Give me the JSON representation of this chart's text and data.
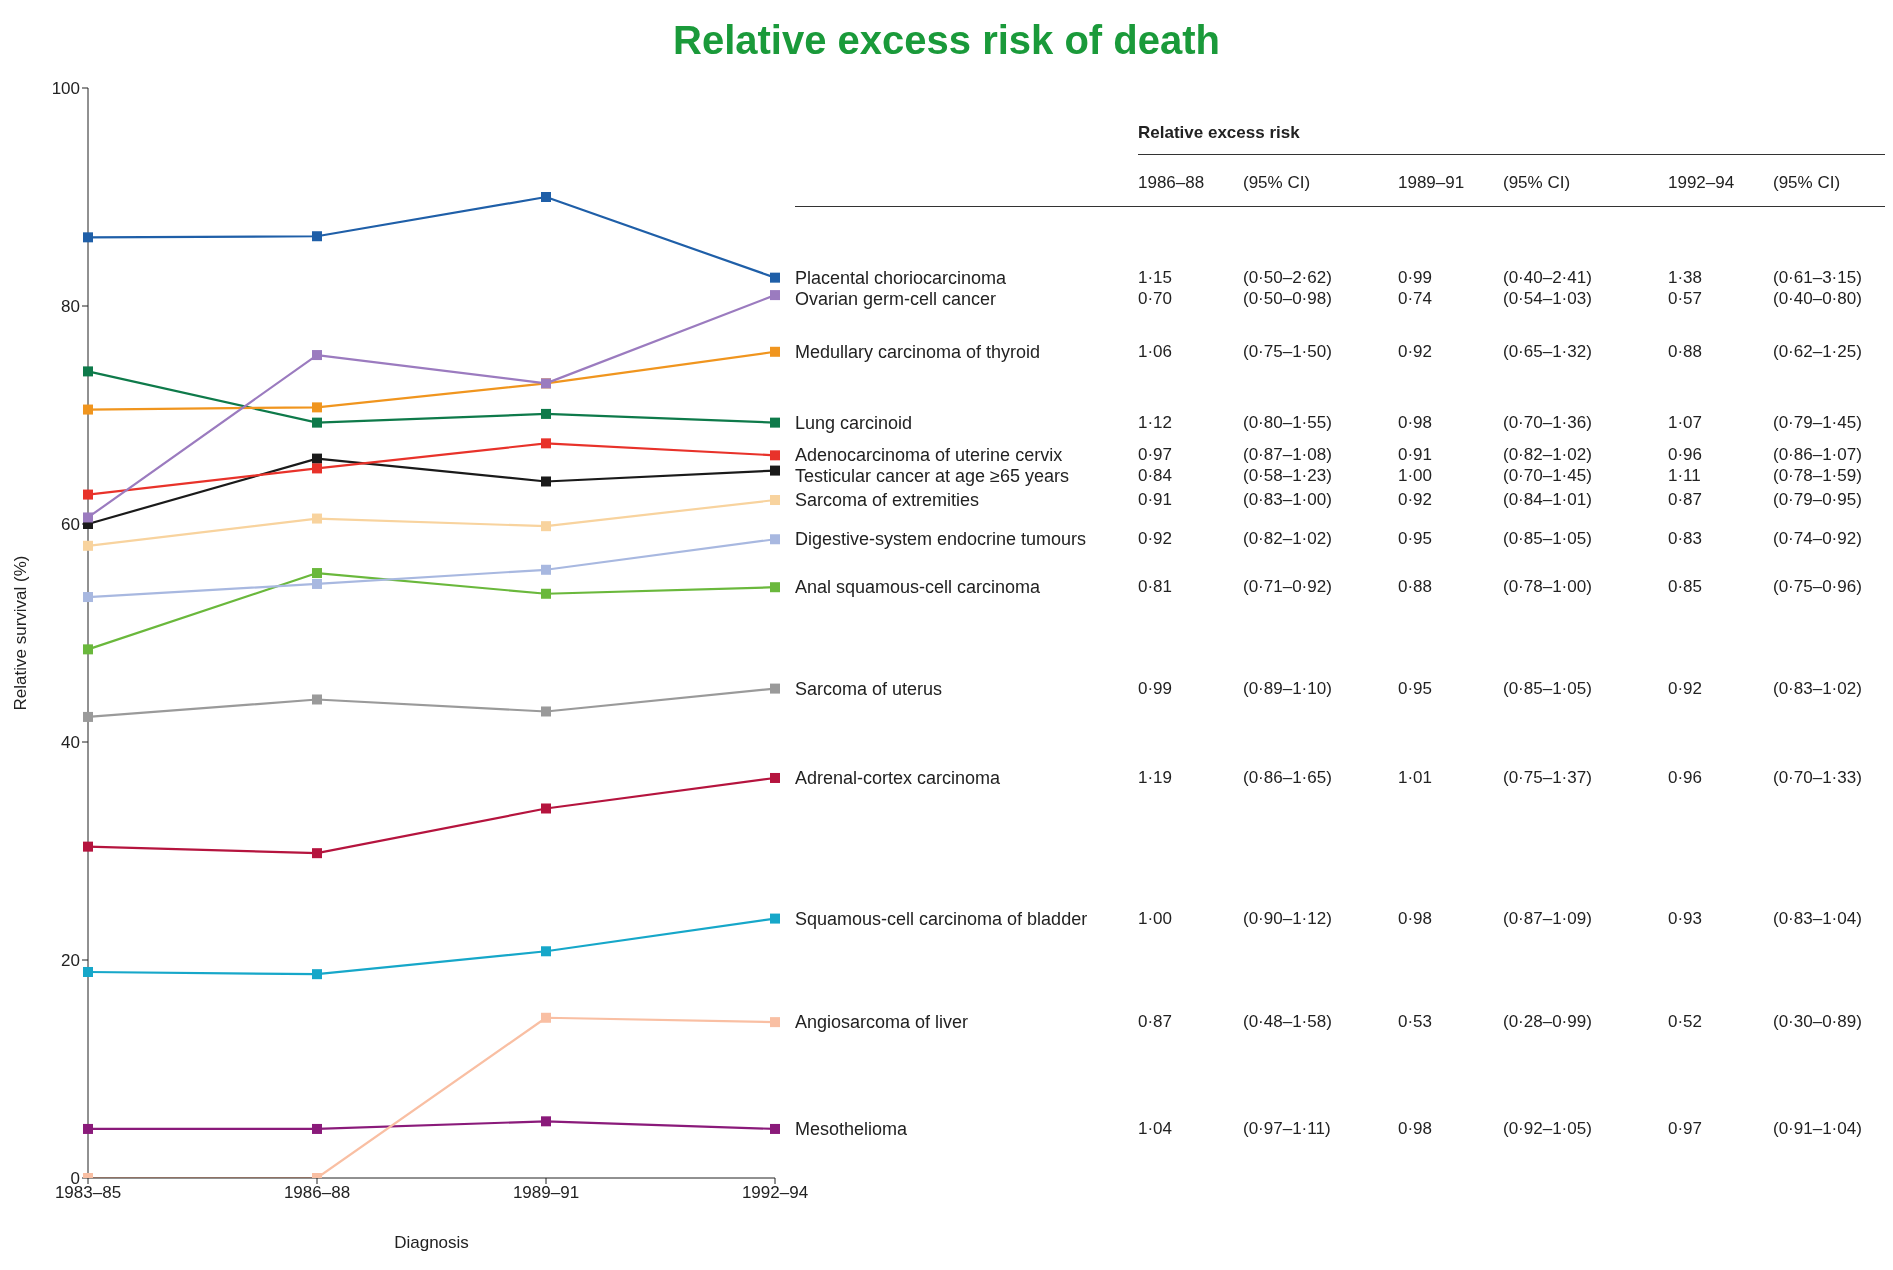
{
  "chart_data": {
    "type": "line",
    "title": "Relative excess risk of death",
    "xlabel": "Diagnosis",
    "ylabel": "Relative survival (%)",
    "categories": [
      "1983–85",
      "1986–88",
      "1989–91",
      "1992–94"
    ],
    "ylim": [
      0,
      100
    ],
    "yticks": [
      0,
      20,
      40,
      60,
      80,
      100
    ],
    "marker": "square",
    "line_style": "solid",
    "series": [
      {
        "name": "Placental choriocarcinoma",
        "color": "#1f5fa8",
        "values": [
          86.3,
          86.4,
          90.0,
          82.6
        ]
      },
      {
        "name": "Ovarian germ-cell cancer",
        "color": "#9b7bbf",
        "values": [
          60.6,
          75.5,
          72.9,
          81.0
        ]
      },
      {
        "name": "Medullary carcinoma of thyroid",
        "color": "#f0951e",
        "values": [
          70.5,
          70.7,
          72.9,
          75.8
        ]
      },
      {
        "name": "Lung carcinoid",
        "color": "#0e7a4a",
        "values": [
          74.0,
          69.3,
          70.1,
          69.3
        ]
      },
      {
        "name": "Adenocarcinoma of uterine cervix",
        "color": "#e8322a",
        "values": [
          62.7,
          65.1,
          67.4,
          66.3
        ]
      },
      {
        "name": "Testicular cancer at age ≥65 years",
        "color": "#1a1a1a",
        "values": [
          60.0,
          66.0,
          63.9,
          64.9
        ]
      },
      {
        "name": "Sarcoma of extremities",
        "color": "#f8d39e",
        "values": [
          58.0,
          60.5,
          59.8,
          62.2
        ]
      },
      {
        "name": "Digestive-system endocrine tumours",
        "color": "#a8b8e0",
        "values": [
          53.3,
          54.5,
          55.8,
          58.6
        ]
      },
      {
        "name": "Anal squamous-cell carcinoma",
        "color": "#6ab83c",
        "values": [
          48.5,
          55.5,
          53.6,
          54.2
        ]
      },
      {
        "name": "Sarcoma of uterus",
        "color": "#9a9a9a",
        "values": [
          42.3,
          43.9,
          42.8,
          44.9
        ]
      },
      {
        "name": "Adrenal-cortex carcinoma",
        "color": "#b5143e",
        "values": [
          30.4,
          29.8,
          33.9,
          36.7
        ]
      },
      {
        "name": "Squamous-cell carcinoma of bladder",
        "color": "#16a7c9",
        "values": [
          18.9,
          18.7,
          20.8,
          23.8
        ]
      },
      {
        "name": "Angiosarcoma of liver",
        "color": "#f9bfa3",
        "values": [
          0,
          0,
          14.7,
          14.3
        ]
      },
      {
        "name": "Mesothelioma",
        "color": "#8a1a7a",
        "values": [
          4.5,
          4.5,
          5.2,
          4.5
        ]
      }
    ],
    "annotations": [
      "Relative excess risk",
      "1986–88",
      "(95% CI)",
      "1989–91",
      "(95% CI)",
      "1992–94",
      "(95% CI)",
      "1·15",
      "(0·50–2·62)",
      "0·99",
      "(0·40–2·41)",
      "1·38",
      "(0·61–3·15)",
      "0·70",
      "(0·50–0·98)",
      "0·74",
      "(0·54–1·03)",
      "0·57",
      "(0·40–0·80)",
      "1·06",
      "(0·75–1·50)",
      "0·92",
      "(0·65–1·32)",
      "0·88",
      "(0·62–1·25)",
      "1·12",
      "(0·80–1·55)",
      "0·98",
      "(0·70–1·36)",
      "1·07",
      "(0·79–1·45)",
      "0·97",
      "(0·87–1·08)",
      "0·91",
      "(0·82–1·02)",
      "0·96",
      "(0·86–1·07)",
      "0·84",
      "(0·58–1·23)",
      "1·00",
      "(0·70–1·45)",
      "1·11",
      "(0·78–1·59)",
      "0·91",
      "(0·83–1·00)",
      "0·92",
      "(0·84–1·01)",
      "0·87",
      "(0·79–0·95)",
      "0·92",
      "(0·82–1·02)",
      "0·95",
      "(0·85–1·05)",
      "0·83",
      "(0·74–0·92)",
      "0·81",
      "(0·71–0·92)",
      "0·88",
      "(0·78–1·00)",
      "0·85",
      "(0·75–0·96)",
      "0·99",
      "(0·89–1·10)",
      "0·95",
      "(0·85–1·05)",
      "0·92",
      "(0·83–1·02)",
      "1·19",
      "(0·86–1·65)",
      "1·01",
      "(0·75–1·37)",
      "0·96",
      "(0·70–1·33)",
      "1·00",
      "(0·90–1·12)",
      "0·98",
      "(0·87–1·09)",
      "0·93",
      "(0·83–1·04)",
      "0·87",
      "(0·48–1·58)",
      "0·53",
      "(0·28–0·99)",
      "0·52",
      "(0·30–0·89)",
      "1·04",
      "(0·97–1·11)",
      "0·98",
      "(0·92–1·05)",
      "0·97",
      "(0·91–1·04)"
    ]
  }
}
